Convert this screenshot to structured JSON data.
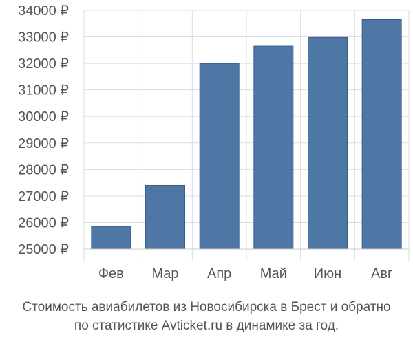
{
  "chart_data": {
    "type": "bar",
    "categories": [
      "Фев",
      "Мар",
      "Апр",
      "Май",
      "Июн",
      "Авг"
    ],
    "values": [
      25850,
      27400,
      32000,
      32650,
      32980,
      33650
    ],
    "ylim": [
      25000,
      34000
    ],
    "yticks": [
      25000,
      26000,
      27000,
      28000,
      29000,
      30000,
      31000,
      32000,
      33000,
      34000
    ],
    "ytick_suffix": " ₽",
    "grid": true,
    "bar_color": "#4e77a6",
    "grid_color": "#dddddd"
  },
  "caption": {
    "line1": "Стоимость авиабилетов из Новосибирска в Брест и обратно",
    "line2": "по статистике Avticket.ru в динамике за год."
  }
}
